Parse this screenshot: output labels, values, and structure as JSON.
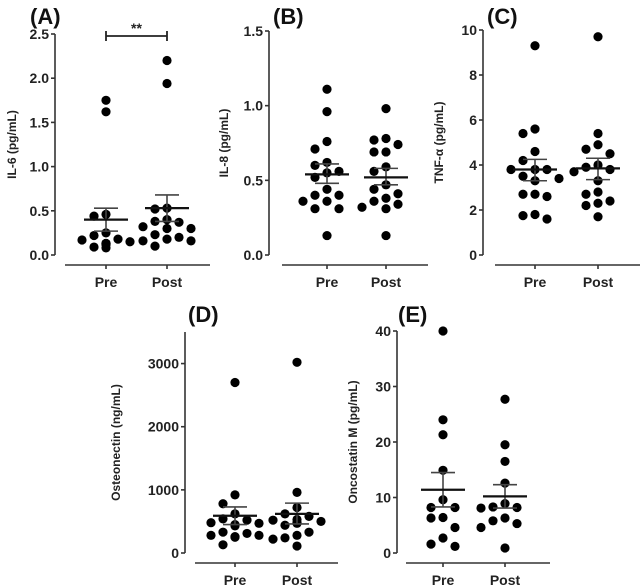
{
  "figure": {
    "description": "Five dot plots with mean ± SEM comparing Pre and Post values"
  },
  "chart_data": [
    {
      "type": "scatter",
      "panel": "(A)",
      "title": "",
      "xlabel": "",
      "ylabel": "IL-6 (pg/mL)",
      "categories": [
        "Pre",
        "Post"
      ],
      "ylim": [
        0,
        2.5
      ],
      "yticks": [
        0.0,
        0.5,
        1.0,
        1.5,
        2.0,
        2.5
      ],
      "ytick_labels": [
        "0.0",
        "0.5",
        "1.0",
        "1.5",
        "2.0",
        "2.5"
      ],
      "series": [
        {
          "name": "Pre",
          "values": [
            1.75,
            1.62,
            0.46,
            0.44,
            0.25,
            0.22,
            0.18,
            0.17,
            0.15,
            0.13,
            0.13,
            0.13,
            0.13,
            0.12,
            0.12,
            0.09,
            0.08
          ],
          "mean": 0.4,
          "sem_low": 0.27,
          "sem_high": 0.53
        },
        {
          "name": "Post",
          "values": [
            2.2,
            1.94,
            0.53,
            0.52,
            0.4,
            0.38,
            0.37,
            0.32,
            0.3,
            0.3,
            0.23,
            0.2,
            0.18,
            0.16,
            0.16,
            0.1
          ],
          "mean": 0.53,
          "sem_low": 0.38,
          "sem_high": 0.68
        }
      ],
      "annotation": {
        "text": "**",
        "between": [
          "Pre",
          "Post"
        ],
        "y": 2.5
      }
    },
    {
      "type": "scatter",
      "panel": "(B)",
      "title": "",
      "xlabel": "",
      "ylabel": "IL-8 (pg/mL)",
      "categories": [
        "Pre",
        "Post"
      ],
      "ylim": [
        0,
        1.5
      ],
      "yticks": [
        0.0,
        0.5,
        1.0,
        1.5
      ],
      "ytick_labels": [
        "0.0",
        "0.5",
        "1.0",
        "1.5"
      ],
      "series": [
        {
          "name": "Pre",
          "values": [
            1.11,
            0.96,
            0.76,
            0.71,
            0.62,
            0.6,
            0.56,
            0.55,
            0.52,
            0.44,
            0.4,
            0.4,
            0.36,
            0.36,
            0.31,
            0.31,
            0.13
          ],
          "mean": 0.54,
          "sem_low": 0.48,
          "sem_high": 0.61
        },
        {
          "name": "Post",
          "values": [
            0.98,
            0.78,
            0.77,
            0.74,
            0.69,
            0.69,
            0.59,
            0.56,
            0.47,
            0.44,
            0.41,
            0.38,
            0.36,
            0.34,
            0.32,
            0.31,
            0.13
          ],
          "mean": 0.52,
          "sem_low": 0.47,
          "sem_high": 0.58
        }
      ]
    },
    {
      "type": "scatter",
      "panel": "(C)",
      "title": "",
      "xlabel": "",
      "ylabel": "TNF-α (pg/mL)",
      "categories": [
        "Pre",
        "Post"
      ],
      "ylim": [
        0,
        10
      ],
      "yticks": [
        0,
        2,
        4,
        6,
        8,
        10
      ],
      "ytick_labels": [
        "0",
        "2",
        "4",
        "6",
        "8",
        "10"
      ],
      "series": [
        {
          "name": "Pre",
          "values": [
            9.3,
            5.6,
            5.4,
            4.6,
            4.2,
            3.8,
            3.8,
            3.8,
            3.5,
            3.4,
            3.3,
            2.7,
            2.7,
            2.6,
            1.8,
            1.75,
            1.6
          ],
          "mean": 3.8,
          "sem_low": 3.3,
          "sem_high": 4.25
        },
        {
          "name": "Post",
          "values": [
            9.7,
            5.4,
            4.9,
            4.7,
            4.5,
            4.0,
            3.9,
            3.8,
            3.7,
            3.3,
            2.8,
            2.7,
            2.4,
            2.3,
            2.2,
            1.7
          ],
          "mean": 3.85,
          "sem_low": 3.35,
          "sem_high": 4.3
        }
      ]
    },
    {
      "type": "scatter",
      "panel": "(D)",
      "title": "",
      "xlabel": "",
      "ylabel": "Osteonectin (ng/mL)",
      "categories": [
        "Pre",
        "Post"
      ],
      "ylim": [
        0,
        3500
      ],
      "yticks": [
        0,
        1000,
        2000,
        3000
      ],
      "ytick_labels": [
        "0",
        "1000",
        "2000",
        "3000"
      ],
      "series": [
        {
          "name": "Pre",
          "values": [
            2700,
            920,
            780,
            620,
            540,
            520,
            480,
            470,
            450,
            430,
            330,
            310,
            280,
            280,
            260,
            250,
            130
          ],
          "mean": 590,
          "sem_low": 450,
          "sem_high": 730
        },
        {
          "name": "Post",
          "values": [
            3020,
            960,
            720,
            620,
            580,
            530,
            520,
            500,
            480,
            470,
            440,
            330,
            280,
            240,
            220,
            110
          ],
          "mean": 620,
          "sem_low": 460,
          "sem_high": 790
        }
      ]
    },
    {
      "type": "scatter",
      "panel": "(E)",
      "title": "",
      "xlabel": "",
      "ylabel": "Oncostatin M (pg/mL)",
      "categories": [
        "Pre",
        "Post"
      ],
      "ylim": [
        0,
        40
      ],
      "yticks": [
        0,
        10,
        20,
        30,
        40
      ],
      "ytick_labels": [
        "0",
        "10",
        "20",
        "30",
        "40"
      ],
      "series": [
        {
          "name": "Pre",
          "values": [
            40,
            24,
            21.3,
            14.9,
            9.6,
            8.2,
            8.2,
            6.4,
            6.3,
            4.6,
            2.7,
            1.6,
            1.2
          ],
          "mean": 11.4,
          "sem_low": 8.3,
          "sem_high": 14.5
        },
        {
          "name": "Post",
          "values": [
            27.7,
            19.5,
            16.5,
            12.6,
            8.9,
            8.3,
            8.2,
            8.1,
            6.3,
            5.8,
            5.3,
            4.6,
            0.9
          ],
          "mean": 10.2,
          "sem_low": 8.1,
          "sem_high": 12.3
        }
      ]
    }
  ]
}
